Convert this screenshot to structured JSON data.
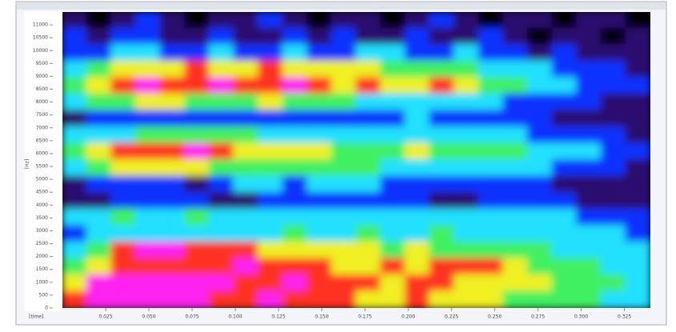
{
  "chart_data": {
    "type": "heatmap",
    "y_label": "[Hz]",
    "x_label": "[time]",
    "xlim": [
      0,
      0.34
    ],
    "ylim": [
      0,
      11500
    ],
    "xticks": [
      0.025,
      {
        "value": 0.05,
        "label": "0.050"
      },
      0.075,
      {
        "value": 0.1,
        "label": "0.100"
      },
      0.125,
      {
        "value": 0.15,
        "label": "0.150"
      },
      0.175,
      {
        "value": 0.2,
        "label": "0.200"
      },
      0.225,
      {
        "value": 0.25,
        "label": "0.250"
      },
      0.275,
      {
        "value": 0.3,
        "label": "0.300"
      },
      0.325
    ],
    "yticks": [
      0,
      500,
      1000,
      1500,
      2000,
      2500,
      3000,
      3500,
      4000,
      4500,
      5000,
      5500,
      6000,
      6500,
      7000,
      7500,
      8000,
      8500,
      9000,
      9500,
      10000,
      10500,
      11000
    ],
    "colormap": [
      "#000000",
      "#2a0a6e",
      "#1030ff",
      "#20e0ff",
      "#40f060",
      "#f0f020",
      "#ff3020",
      "#ff20f0"
    ],
    "z": [
      [
        1,
        0,
        1,
        2,
        1,
        0,
        1,
        1,
        2,
        1,
        0,
        1,
        1,
        0,
        1,
        2,
        1,
        0,
        1,
        1,
        0,
        1,
        1,
        0
      ],
      [
        2,
        1,
        2,
        2,
        1,
        1,
        2,
        1,
        1,
        2,
        1,
        2,
        1,
        1,
        2,
        1,
        1,
        2,
        1,
        0,
        1,
        1,
        0,
        1
      ],
      [
        2,
        2,
        3,
        3,
        2,
        2,
        3,
        2,
        2,
        3,
        2,
        2,
        3,
        3,
        2,
        2,
        3,
        2,
        2,
        1,
        2,
        1,
        1,
        1
      ],
      [
        3,
        4,
        5,
        5,
        5,
        6,
        5,
        5,
        6,
        5,
        5,
        5,
        5,
        4,
        4,
        4,
        4,
        3,
        3,
        3,
        2,
        2,
        2,
        1
      ],
      [
        4,
        5,
        6,
        7,
        6,
        6,
        7,
        6,
        6,
        7,
        6,
        5,
        6,
        5,
        5,
        6,
        5,
        4,
        4,
        3,
        3,
        2,
        2,
        2
      ],
      [
        3,
        4,
        4,
        5,
        5,
        4,
        4,
        4,
        5,
        4,
        4,
        4,
        3,
        3,
        3,
        3,
        3,
        3,
        2,
        2,
        2,
        2,
        1,
        1
      ],
      [
        1,
        2,
        2,
        2,
        2,
        2,
        2,
        2,
        2,
        2,
        2,
        2,
        2,
        2,
        3,
        2,
        2,
        2,
        2,
        2,
        1,
        1,
        1,
        1
      ],
      [
        3,
        3,
        3,
        4,
        4,
        4,
        4,
        4,
        3,
        3,
        3,
        3,
        3,
        3,
        3,
        3,
        3,
        3,
        3,
        2,
        2,
        2,
        2,
        1
      ],
      [
        4,
        5,
        6,
        6,
        6,
        7,
        6,
        5,
        5,
        5,
        5,
        4,
        4,
        4,
        5,
        4,
        4,
        4,
        4,
        3,
        3,
        3,
        2,
        2
      ],
      [
        3,
        4,
        5,
        5,
        5,
        5,
        4,
        4,
        4,
        4,
        4,
        4,
        4,
        3,
        3,
        3,
        3,
        3,
        3,
        3,
        2,
        2,
        2,
        1
      ],
      [
        1,
        2,
        2,
        2,
        2,
        1,
        2,
        3,
        3,
        2,
        3,
        3,
        3,
        2,
        2,
        2,
        2,
        2,
        2,
        2,
        1,
        1,
        1,
        1
      ],
      [
        1,
        1,
        2,
        2,
        2,
        2,
        1,
        1,
        2,
        2,
        2,
        2,
        2,
        2,
        2,
        1,
        1,
        2,
        2,
        2,
        2,
        1,
        1,
        1
      ],
      [
        3,
        3,
        4,
        3,
        3,
        4,
        3,
        3,
        3,
        3,
        3,
        3,
        3,
        3,
        3,
        3,
        3,
        3,
        3,
        3,
        3,
        2,
        2,
        2
      ],
      [
        2,
        3,
        3,
        3,
        3,
        3,
        3,
        3,
        3,
        4,
        3,
        3,
        4,
        3,
        3,
        4,
        3,
        3,
        3,
        3,
        3,
        3,
        3,
        2
      ],
      [
        3,
        4,
        6,
        7,
        7,
        6,
        6,
        6,
        5,
        5,
        5,
        5,
        5,
        4,
        5,
        4,
        4,
        4,
        4,
        4,
        3,
        3,
        3,
        3
      ],
      [
        4,
        5,
        6,
        6,
        6,
        6,
        6,
        7,
        6,
        6,
        6,
        5,
        5,
        6,
        5,
        6,
        6,
        6,
        5,
        4,
        4,
        4,
        3,
        3
      ],
      [
        5,
        7,
        7,
        7,
        7,
        7,
        7,
        6,
        6,
        7,
        6,
        6,
        6,
        5,
        6,
        6,
        5,
        5,
        5,
        5,
        4,
        4,
        4,
        3
      ],
      [
        6,
        7,
        7,
        7,
        7,
        7,
        6,
        6,
        7,
        6,
        6,
        6,
        5,
        5,
        6,
        5,
        5,
        5,
        4,
        4,
        4,
        4,
        3,
        3
      ]
    ]
  }
}
